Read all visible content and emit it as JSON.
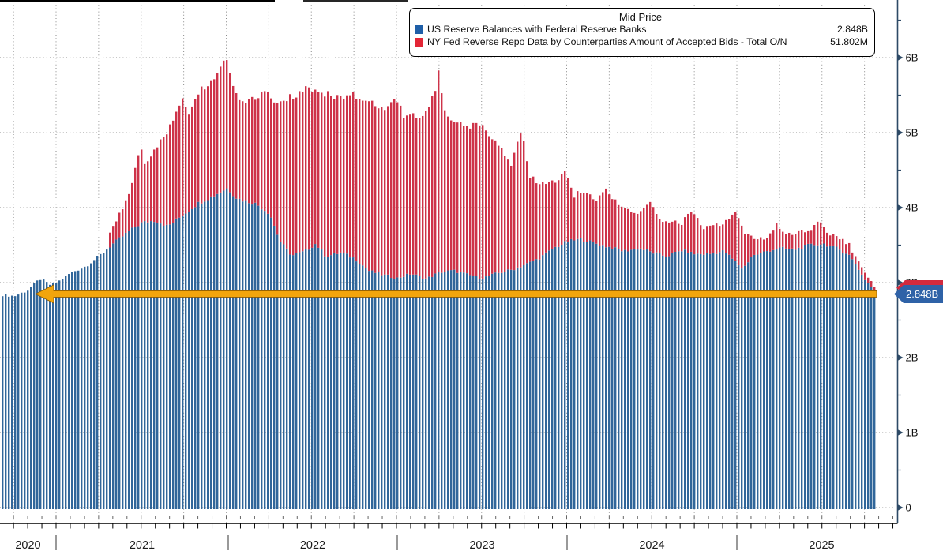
{
  "legend": {
    "title": "Mid Price",
    "items": [
      {
        "swatch_color": "#1F5FA8",
        "label": "US Reserve Balances with Federal Reserve Banks",
        "value": "2.848B"
      },
      {
        "swatch_color": "#E32636",
        "label": "NY Fed Reverse Repo Data by Counterparties Amount of Accepted Bids - Total O/N",
        "value": "51.802M"
      }
    ]
  },
  "axis_marker": {
    "last_price_label": "2.848B",
    "red_strip_color": "#D22A3E",
    "blue_bg": "#2F62A7"
  },
  "chart_data": {
    "type": "bar",
    "title": "Mid Price",
    "stacked": true,
    "grid": "dotted",
    "legend_position": "top-right",
    "bar_colors": {
      "reserves": "#31669A",
      "reverse_repo": "#CE3349"
    },
    "axis_color": "#2D4A66",
    "x_axis": {
      "years": [
        "2020",
        "2021",
        "2022",
        "2023",
        "2024",
        "2025"
      ],
      "range_decimal_years": [
        2020.67,
        2025.81
      ]
    },
    "y_axis": {
      "side": "right",
      "ticks": [
        {
          "label": "0",
          "value": 0
        },
        {
          "label": "1B",
          "value": 1
        },
        {
          "label": "2B",
          "value": 2
        },
        {
          "label": "3B",
          "value": 3
        },
        {
          "label": "4B",
          "value": 4
        },
        {
          "label": "5B",
          "value": 5
        },
        {
          "label": "6B",
          "value": 6
        }
      ],
      "minor_tick_step": 0.5,
      "ylim": [
        0,
        6.77
      ]
    },
    "annotation_arrow": {
      "y_value": 2.848,
      "color": "#F2A50C",
      "direction": "left"
    },
    "series": [
      {
        "name": "US Reserve Balances with Federal Reserve Banks",
        "role": "base",
        "last_value_label": "2.848B",
        "anchors": [
          [
            2020.67,
            2.84
          ],
          [
            2020.75,
            2.82
          ],
          [
            2020.83,
            2.9
          ],
          [
            2020.9,
            3.05
          ],
          [
            2020.96,
            2.97
          ],
          [
            2021.0,
            3.0
          ],
          [
            2021.08,
            3.13
          ],
          [
            2021.17,
            3.22
          ],
          [
            2021.25,
            3.36
          ],
          [
            2021.33,
            3.52
          ],
          [
            2021.42,
            3.68
          ],
          [
            2021.5,
            3.8
          ],
          [
            2021.58,
            3.83
          ],
          [
            2021.65,
            3.75
          ],
          [
            2021.75,
            3.92
          ],
          [
            2021.83,
            4.06
          ],
          [
            2021.92,
            4.16
          ],
          [
            2022.0,
            4.26
          ],
          [
            2022.06,
            4.12
          ],
          [
            2022.17,
            4.05
          ],
          [
            2022.25,
            3.92
          ],
          [
            2022.31,
            3.55
          ],
          [
            2022.38,
            3.36
          ],
          [
            2022.46,
            3.42
          ],
          [
            2022.52,
            3.52
          ],
          [
            2022.58,
            3.35
          ],
          [
            2022.67,
            3.4
          ],
          [
            2022.75,
            3.32
          ],
          [
            2022.83,
            3.16
          ],
          [
            2022.92,
            3.1
          ],
          [
            2023.0,
            3.06
          ],
          [
            2023.08,
            3.12
          ],
          [
            2023.17,
            3.05
          ],
          [
            2023.25,
            3.14
          ],
          [
            2023.33,
            3.16
          ],
          [
            2023.42,
            3.1
          ],
          [
            2023.5,
            3.06
          ],
          [
            2023.58,
            3.12
          ],
          [
            2023.67,
            3.17
          ],
          [
            2023.75,
            3.24
          ],
          [
            2023.83,
            3.32
          ],
          [
            2023.92,
            3.46
          ],
          [
            2024.0,
            3.55
          ],
          [
            2024.08,
            3.58
          ],
          [
            2024.17,
            3.52
          ],
          [
            2024.25,
            3.47
          ],
          [
            2024.33,
            3.42
          ],
          [
            2024.42,
            3.46
          ],
          [
            2024.5,
            3.4
          ],
          [
            2024.58,
            3.35
          ],
          [
            2024.67,
            3.43
          ],
          [
            2024.75,
            3.38
          ],
          [
            2024.83,
            3.38
          ],
          [
            2024.92,
            3.42
          ],
          [
            2025.03,
            3.18
          ],
          [
            2025.08,
            3.35
          ],
          [
            2025.17,
            3.42
          ],
          [
            2025.25,
            3.46
          ],
          [
            2025.33,
            3.44
          ],
          [
            2025.42,
            3.5
          ],
          [
            2025.5,
            3.52
          ],
          [
            2025.58,
            3.46
          ],
          [
            2025.65,
            3.38
          ],
          [
            2025.7,
            3.22
          ],
          [
            2025.74,
            3.06
          ],
          [
            2025.78,
            2.96
          ],
          [
            2025.81,
            2.85
          ]
        ]
      },
      {
        "name": "NY Fed Reverse Repo Data by Counterparties Amount of Accepted Bids - Total O/N",
        "role": "stacked_total_top",
        "last_value_label": "51.802M",
        "anchors_total": [
          [
            2020.67,
            2.84
          ],
          [
            2020.75,
            2.82
          ],
          [
            2020.83,
            2.9
          ],
          [
            2020.9,
            3.05
          ],
          [
            2020.96,
            2.97
          ],
          [
            2021.0,
            3.0
          ],
          [
            2021.08,
            3.13
          ],
          [
            2021.17,
            3.22
          ],
          [
            2021.25,
            3.37
          ],
          [
            2021.33,
            3.75
          ],
          [
            2021.42,
            4.15
          ],
          [
            2021.49,
            4.82
          ],
          [
            2021.52,
            4.55
          ],
          [
            2021.58,
            4.8
          ],
          [
            2021.67,
            5.1
          ],
          [
            2021.74,
            5.45
          ],
          [
            2021.77,
            5.25
          ],
          [
            2021.83,
            5.55
          ],
          [
            2021.92,
            5.7
          ],
          [
            2021.99,
            6.03
          ],
          [
            2022.04,
            5.6
          ],
          [
            2022.08,
            5.42
          ],
          [
            2022.17,
            5.47
          ],
          [
            2022.23,
            5.58
          ],
          [
            2022.27,
            5.42
          ],
          [
            2022.33,
            5.44
          ],
          [
            2022.42,
            5.52
          ],
          [
            2022.48,
            5.6
          ],
          [
            2022.54,
            5.5
          ],
          [
            2022.58,
            5.52
          ],
          [
            2022.67,
            5.46
          ],
          [
            2022.73,
            5.55
          ],
          [
            2022.79,
            5.4
          ],
          [
            2022.83,
            5.42
          ],
          [
            2022.92,
            5.33
          ],
          [
            2022.99,
            5.5
          ],
          [
            2023.04,
            5.22
          ],
          [
            2023.08,
            5.22
          ],
          [
            2023.17,
            5.25
          ],
          [
            2023.22,
            5.55
          ],
          [
            2023.24,
            5.82
          ],
          [
            2023.28,
            5.3
          ],
          [
            2023.33,
            5.16
          ],
          [
            2023.42,
            5.08
          ],
          [
            2023.48,
            5.14
          ],
          [
            2023.54,
            4.95
          ],
          [
            2023.58,
            4.9
          ],
          [
            2023.67,
            4.58
          ],
          [
            2023.73,
            5.06
          ],
          [
            2023.77,
            4.45
          ],
          [
            2023.83,
            4.32
          ],
          [
            2023.92,
            4.35
          ],
          [
            2023.99,
            4.48
          ],
          [
            2024.04,
            4.16
          ],
          [
            2024.08,
            4.22
          ],
          [
            2024.17,
            4.12
          ],
          [
            2024.23,
            4.24
          ],
          [
            2024.29,
            4.06
          ],
          [
            2024.33,
            3.99
          ],
          [
            2024.42,
            3.93
          ],
          [
            2024.48,
            4.06
          ],
          [
            2024.54,
            3.86
          ],
          [
            2024.58,
            3.81
          ],
          [
            2024.67,
            3.79
          ],
          [
            2024.73,
            3.98
          ],
          [
            2024.79,
            3.72
          ],
          [
            2024.83,
            3.74
          ],
          [
            2024.92,
            3.8
          ],
          [
            2024.99,
            3.96
          ],
          [
            2025.04,
            3.66
          ],
          [
            2025.08,
            3.6
          ],
          [
            2025.17,
            3.6
          ],
          [
            2025.23,
            3.78
          ],
          [
            2025.28,
            3.62
          ],
          [
            2025.33,
            3.66
          ],
          [
            2025.42,
            3.7
          ],
          [
            2025.48,
            3.84
          ],
          [
            2025.53,
            3.66
          ],
          [
            2025.58,
            3.62
          ],
          [
            2025.65,
            3.52
          ],
          [
            2025.7,
            3.32
          ],
          [
            2025.74,
            3.14
          ],
          [
            2025.78,
            3.03
          ],
          [
            2025.81,
            2.91
          ]
        ]
      }
    ]
  }
}
